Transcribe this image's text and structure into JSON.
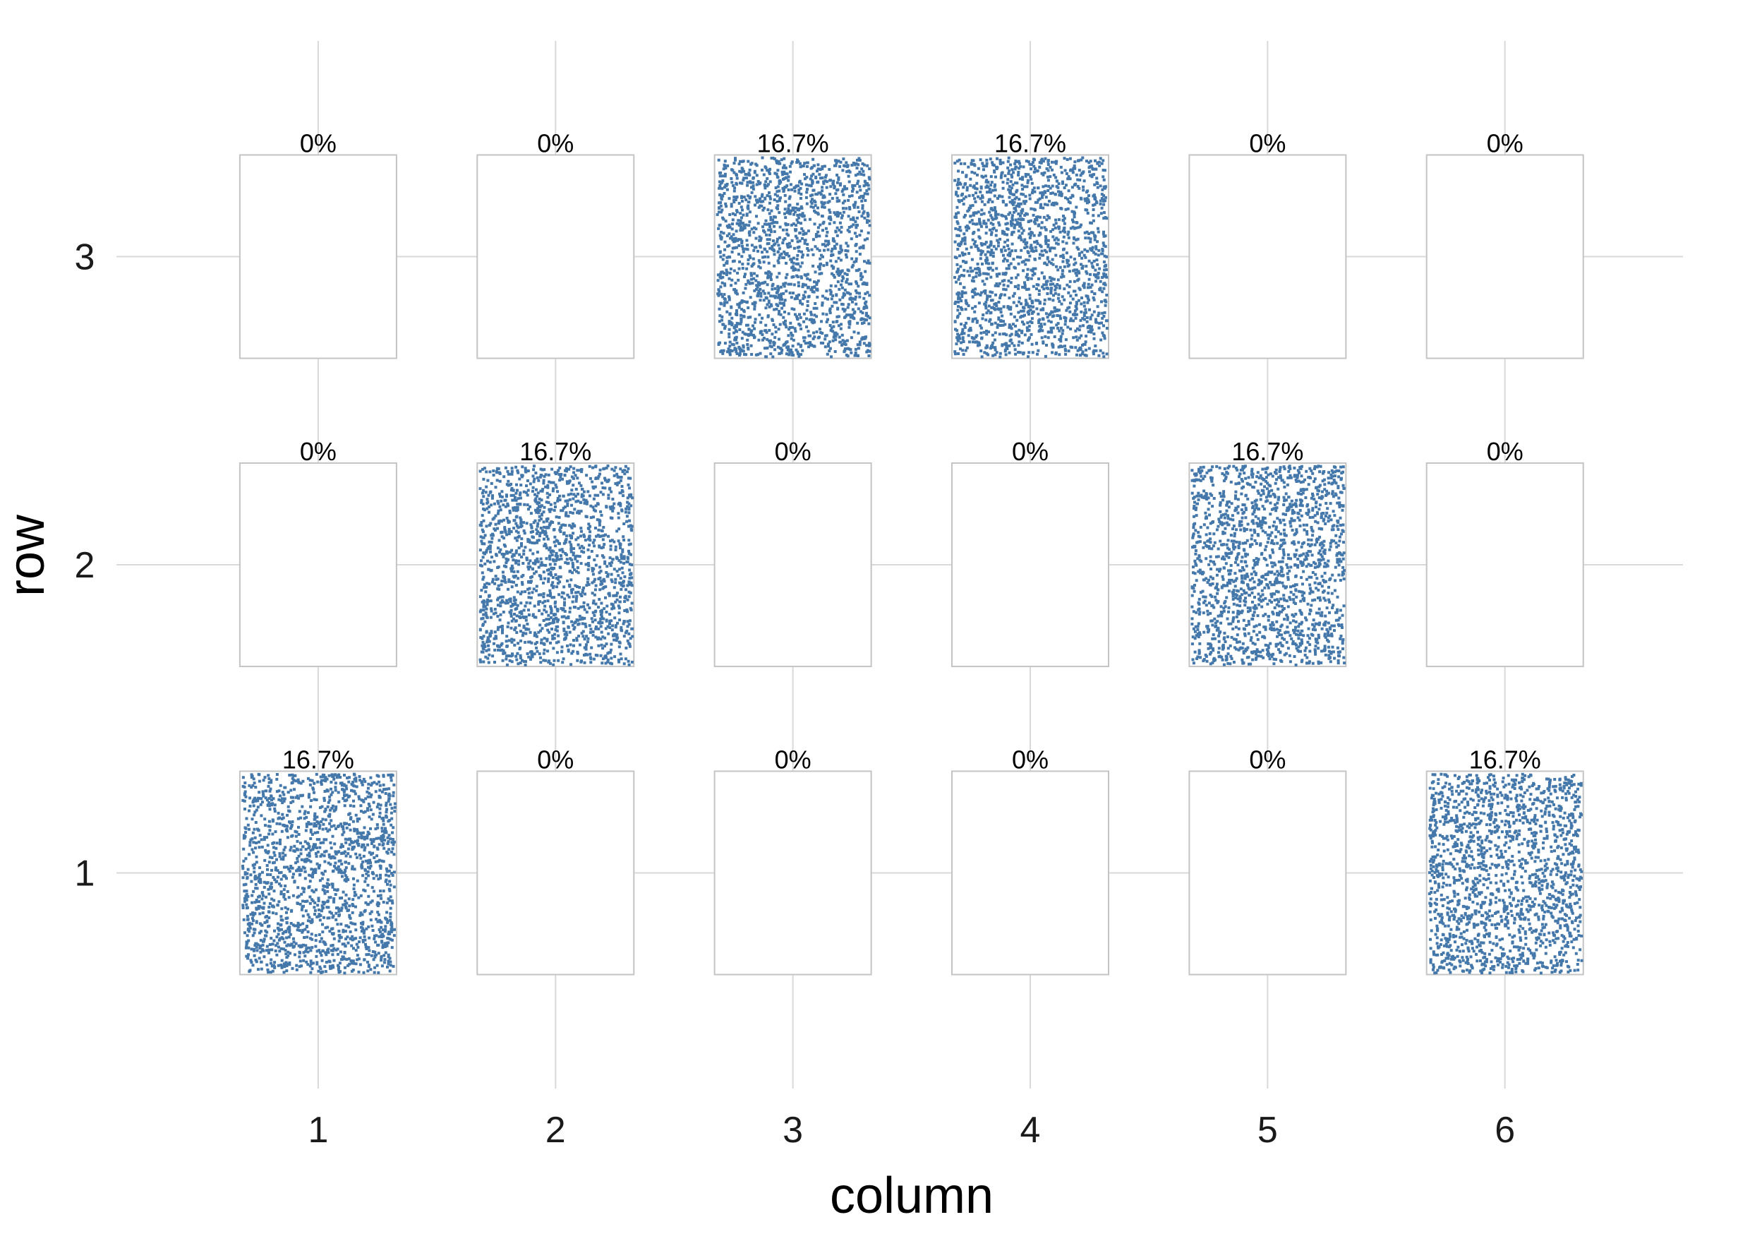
{
  "chart_data": {
    "type": "heatmap",
    "xlabel": "column",
    "ylabel": "row",
    "x_ticks": [
      "1",
      "2",
      "3",
      "4",
      "5",
      "6"
    ],
    "y_ticks": [
      "1",
      "2",
      "3"
    ],
    "xlim": [
      0.15,
      6.75
    ],
    "ylim": [
      0.3,
      3.7
    ],
    "grid": true,
    "point_color": "#4477AA",
    "cells": [
      {
        "row": 1,
        "column": 1,
        "label": "16.7%",
        "value": 16.7
      },
      {
        "row": 1,
        "column": 2,
        "label": "0%",
        "value": 0
      },
      {
        "row": 1,
        "column": 3,
        "label": "0%",
        "value": 0
      },
      {
        "row": 1,
        "column": 4,
        "label": "0%",
        "value": 0
      },
      {
        "row": 1,
        "column": 5,
        "label": "0%",
        "value": 0
      },
      {
        "row": 1,
        "column": 6,
        "label": "16.7%",
        "value": 16.7
      },
      {
        "row": 2,
        "column": 1,
        "label": "0%",
        "value": 0
      },
      {
        "row": 2,
        "column": 2,
        "label": "16.7%",
        "value": 16.7
      },
      {
        "row": 2,
        "column": 3,
        "label": "0%",
        "value": 0
      },
      {
        "row": 2,
        "column": 4,
        "label": "0%",
        "value": 0
      },
      {
        "row": 2,
        "column": 5,
        "label": "16.7%",
        "value": 16.7
      },
      {
        "row": 2,
        "column": 6,
        "label": "0%",
        "value": 0
      },
      {
        "row": 3,
        "column": 1,
        "label": "0%",
        "value": 0
      },
      {
        "row": 3,
        "column": 2,
        "label": "0%",
        "value": 0
      },
      {
        "row": 3,
        "column": 3,
        "label": "16.7%",
        "value": 16.7
      },
      {
        "row": 3,
        "column": 4,
        "label": "16.7%",
        "value": 16.7
      },
      {
        "row": 3,
        "column": 5,
        "label": "0%",
        "value": 0
      },
      {
        "row": 3,
        "column": 6,
        "label": "0%",
        "value": 0
      }
    ]
  }
}
